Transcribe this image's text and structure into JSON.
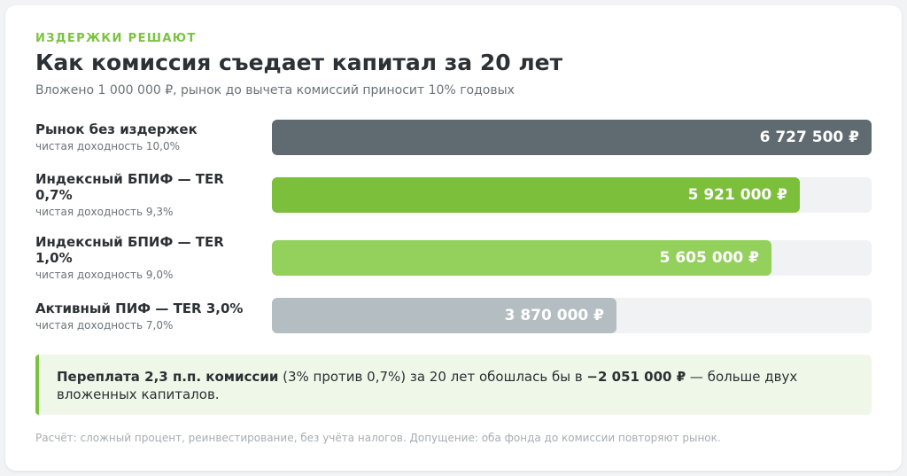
{
  "eyebrow": "ИЗДЕРЖКИ РЕШАЮТ",
  "chart_data": {
    "type": "bar",
    "orientation": "horizontal",
    "title": "Как комиссия съедает капитал за 20 лет",
    "subtitle": "Вложено 1 000 000 ₽, рынок до вычета комиссий приносит 10% годовых",
    "categories": [
      "Рынок без издержек",
      "Индексный БПИФ — TER 0,7%",
      "Индексный БПИФ — TER 1,0%",
      "Активный ПИФ — TER 3,0%"
    ],
    "net_return_labels": [
      "чистая доходность 10,0%",
      "чистая доходность 9,3%",
      "чистая доходность 9,0%",
      "чистая доходность 7,0%"
    ],
    "values": [
      6727500,
      5921000,
      5605000,
      3870000
    ],
    "value_labels": [
      "6 727 500 ₽",
      "5 921 000 ₽",
      "5 605 000 ₽",
      "3 870 000 ₽"
    ],
    "xlim": [
      0,
      6727500
    ],
    "colors": [
      "#5f6b70",
      "#7cbf3b",
      "#93d05c",
      "#b4bdc2"
    ],
    "track_color": "#f0f2f3",
    "grid": false,
    "legend": "none"
  },
  "callout": {
    "bold1": "Переплата 2,3 п.п. комиссии",
    "text1": " (3% против 0,7%) за 20 лет обошлась бы в ",
    "bold2": "−2 051 000 ₽",
    "text2": " — больше двух вложенных капиталов."
  },
  "footnote": "Расчёт: сложный процент, реинвестирование, без учёта налогов. Допущение: оба фонда до комиссии повторяют рынок."
}
